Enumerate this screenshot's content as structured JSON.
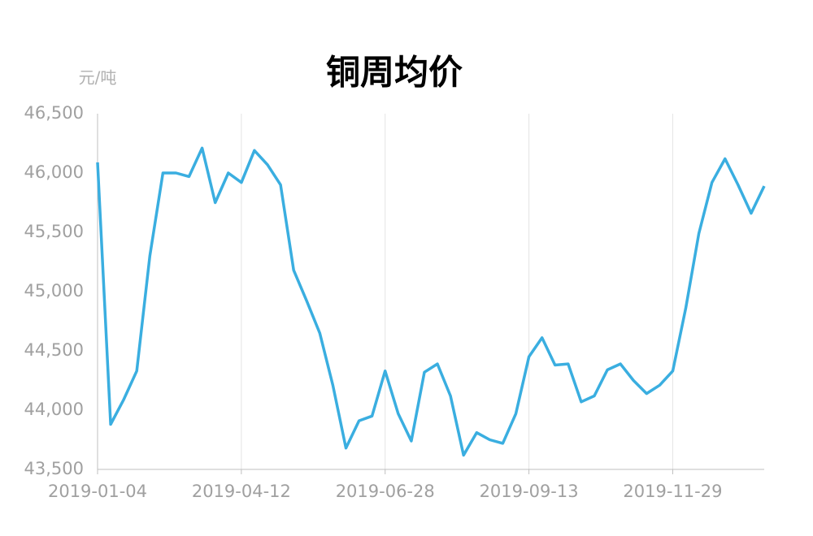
{
  "chart_data": {
    "type": "line",
    "title": "铜周均价",
    "y_label": "元/吨",
    "categories": [
      "2019-01-04",
      null,
      null,
      null,
      null,
      null,
      null,
      null,
      null,
      null,
      null,
      "2019-04-12",
      null,
      null,
      null,
      null,
      null,
      null,
      null,
      null,
      null,
      null,
      "2019-06-28",
      null,
      null,
      null,
      null,
      null,
      null,
      null,
      null,
      null,
      null,
      "2019-09-13",
      null,
      null,
      null,
      null,
      null,
      null,
      null,
      null,
      null,
      null,
      "2019-11-29",
      null,
      null,
      null,
      null,
      null,
      null,
      null
    ],
    "values": [
      46090,
      43880,
      44090,
      44330,
      45300,
      46000,
      46000,
      45970,
      46210,
      45750,
      46000,
      45920,
      46190,
      46070,
      45900,
      45180,
      44920,
      44650,
      44210,
      43680,
      43910,
      43950,
      44330,
      43970,
      43740,
      44320,
      44390,
      44120,
      43620,
      43810,
      43750,
      43720,
      43970,
      44450,
      44610,
      44380,
      44390,
      44070,
      44120,
      44340,
      44390,
      44250,
      44140,
      44210,
      44330,
      44860,
      45490,
      45920,
      46120,
      45900,
      45660,
      45890
    ],
    "color": "#3aaee0",
    "ylim": [
      43500,
      46500
    ],
    "yticks": [
      {
        "value": 43500,
        "label": "43,500"
      },
      {
        "value": 44000,
        "label": "44,000"
      },
      {
        "value": 44500,
        "label": "44,500"
      },
      {
        "value": 45000,
        "label": "45,000"
      },
      {
        "value": 45500,
        "label": "45,500"
      },
      {
        "value": 46000,
        "label": "46,000"
      },
      {
        "value": 46500,
        "label": "46,500"
      }
    ],
    "grid": true
  }
}
